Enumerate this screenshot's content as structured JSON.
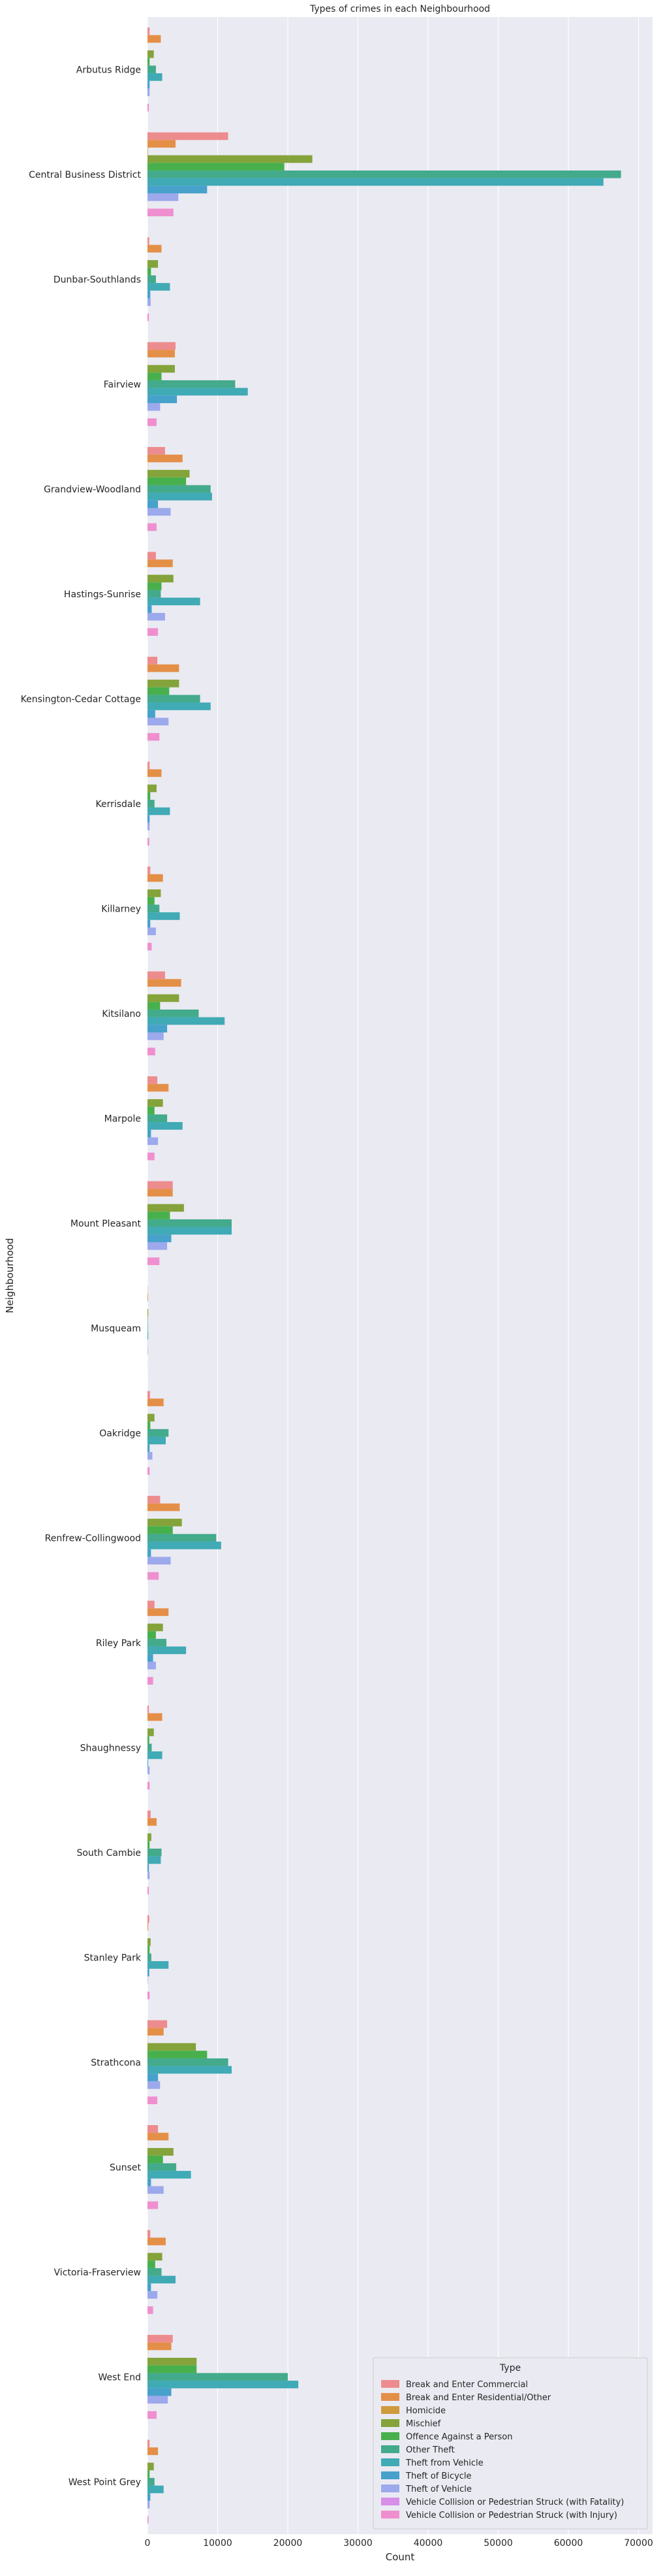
{
  "chart_data": {
    "type": "bar",
    "orientation": "horizontal",
    "title": "Types of crimes in each Neighbourhood",
    "xlabel": "Count",
    "ylabel": "Neighbourhood",
    "xlim": [
      0,
      72000
    ],
    "xticks": [
      0,
      10000,
      20000,
      30000,
      40000,
      50000,
      60000,
      70000
    ],
    "grid": true,
    "legend_position": "bottom-right",
    "legend_title": "Type",
    "categories": [
      "Arbutus Ridge",
      "Central Business District",
      "Dunbar-Southlands",
      "Fairview",
      "Grandview-Woodland",
      "Hastings-Sunrise",
      "Kensington-Cedar Cottage",
      "Kerrisdale",
      "Killarney",
      "Kitsilano",
      "Marpole",
      "Mount Pleasant",
      "Musqueam",
      "Oakridge",
      "Renfrew-Collingwood",
      "Riley Park",
      "Shaughnessy",
      "South Cambie",
      "Stanley Park",
      "Strathcona",
      "Sunset",
      "Victoria-Fraserview",
      "West End",
      "West Point Grey"
    ],
    "series": [
      {
        "name": "Break and Enter Commercial",
        "color": "#ed8c8e",
        "values": [
          300,
          11500,
          250,
          4000,
          2500,
          1200,
          1400,
          300,
          400,
          2500,
          1400,
          3600,
          30,
          350,
          1800,
          1000,
          200,
          450,
          250,
          2800,
          1500,
          400,
          3600,
          300
        ]
      },
      {
        "name": "Break and Enter Residential/Other",
        "color": "#e48f48",
        "values": [
          1900,
          4000,
          2000,
          3900,
          5000,
          3600,
          4500,
          2000,
          2200,
          4800,
          3000,
          3600,
          80,
          2300,
          4600,
          3000,
          2100,
          1300,
          100,
          2300,
          3000,
          2600,
          3400,
          1500
        ]
      },
      {
        "name": "Homicide",
        "color": "#cf9a3c",
        "values": [
          5,
          70,
          5,
          10,
          25,
          15,
          20,
          5,
          5,
          10,
          5,
          20,
          2,
          5,
          15,
          5,
          2,
          2,
          5,
          30,
          15,
          5,
          20,
          2
        ]
      },
      {
        "name": "Mischief",
        "color": "#84a33a",
        "values": [
          900,
          23500,
          1500,
          3900,
          6000,
          3700,
          4500,
          1300,
          1900,
          4500,
          2200,
          5200,
          100,
          1000,
          4900,
          2200,
          900,
          550,
          450,
          6900,
          3700,
          2100,
          7000,
          900
        ]
      },
      {
        "name": "Offence Against a Person",
        "color": "#47b04c",
        "values": [
          300,
          19500,
          500,
          2000,
          5500,
          2000,
          3100,
          400,
          1000,
          1800,
          1000,
          3200,
          50,
          400,
          3600,
          1200,
          250,
          300,
          300,
          8500,
          2200,
          1100,
          7000,
          300
        ]
      },
      {
        "name": "Other Theft",
        "color": "#43aa8b",
        "values": [
          1200,
          67500,
          1200,
          12500,
          9000,
          1900,
          7500,
          1000,
          1700,
          7300,
          2800,
          12000,
          60,
          3000,
          9800,
          2700,
          600,
          2000,
          550,
          11500,
          4100,
          2000,
          20000,
          1000
        ]
      },
      {
        "name": "Theft from Vehicle",
        "color": "#40aab5",
        "values": [
          2100,
          65000,
          3200,
          14300,
          9200,
          7500,
          9000,
          3200,
          4600,
          11000,
          5000,
          12000,
          100,
          2600,
          10500,
          5500,
          2100,
          1900,
          3000,
          12000,
          6200,
          4000,
          21500,
          2300
        ]
      },
      {
        "name": "Theft of Bicycle",
        "color": "#46a1cb",
        "values": [
          300,
          8500,
          400,
          4200,
          1500,
          600,
          1100,
          300,
          400,
          2800,
          500,
          3400,
          20,
          300,
          500,
          800,
          100,
          200,
          250,
          1500,
          500,
          500,
          3400,
          400
        ]
      },
      {
        "name": "Theft of Vehicle",
        "color": "#9ca9ec",
        "values": [
          300,
          4400,
          450,
          1800,
          3300,
          2500,
          3000,
          300,
          1200,
          2300,
          1500,
          2800,
          60,
          700,
          3300,
          1200,
          300,
          300,
          50,
          1800,
          2300,
          1400,
          2900,
          300
        ]
      },
      {
        "name": "Vehicle Collision or Pedestrian Struck (with Fatality)",
        "color": "#d78fe8",
        "values": [
          3,
          25,
          3,
          5,
          10,
          8,
          10,
          3,
          5,
          6,
          5,
          6,
          1,
          3,
          10,
          5,
          1,
          2,
          1,
          10,
          10,
          5,
          8,
          1
        ]
      },
      {
        "name": "Vehicle Collision or Pedestrian Struck (with Injury)",
        "color": "#ef8fcf",
        "values": [
          200,
          3700,
          200,
          1300,
          1300,
          1500,
          1700,
          250,
          600,
          1100,
          1000,
          1700,
          10,
          300,
          1600,
          800,
          300,
          200,
          300,
          1400,
          1500,
          800,
          1300,
          150
        ]
      }
    ]
  }
}
